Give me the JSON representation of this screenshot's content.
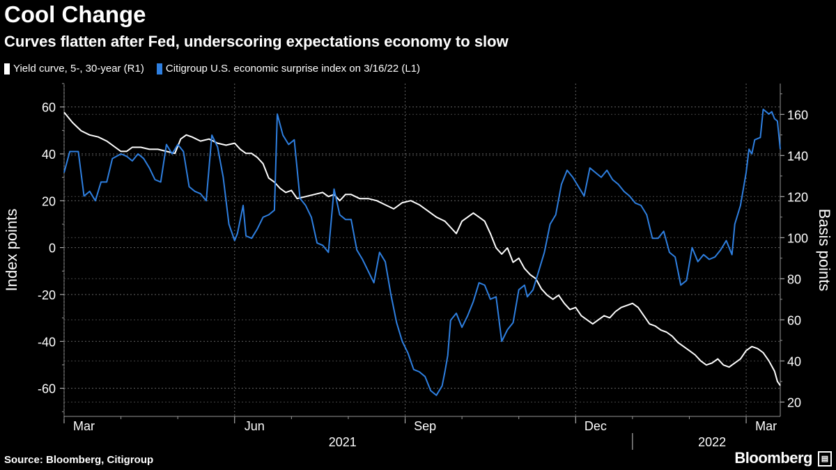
{
  "header": {
    "title": "Cool Change",
    "subtitle": "Curves flatten after Fed, underscoring expectations economy to slow"
  },
  "footer": {
    "source": "Source: Bloomberg, Citigroup",
    "brand": "Bloomberg",
    "brand_icon": "bar-chart-icon"
  },
  "colors": {
    "yield": "#ffffff",
    "citi": "#2e7fe0",
    "grid": "#666666",
    "background": "#000000"
  },
  "chart_data": {
    "type": "line",
    "title": "Cool Change",
    "subtitle": "Curves flatten after Fed, underscoring expectations economy to slow",
    "y_left": {
      "label": "Index points",
      "lim": [
        -72,
        70
      ],
      "ticks": [
        60,
        40,
        20,
        0,
        -20,
        -40,
        -60
      ]
    },
    "y_right": {
      "label": "Basis points",
      "lim": [
        13,
        175
      ],
      "ticks": [
        160,
        140,
        120,
        100,
        80,
        60,
        40,
        20
      ]
    },
    "x": {
      "lim": [
        0,
        12.6
      ],
      "month_ticks": [
        {
          "label": "Mar",
          "pos": 0.35
        },
        {
          "label": "Jun",
          "pos": 3.35
        },
        {
          "label": "Sep",
          "pos": 6.35
        },
        {
          "label": "Dec",
          "pos": 9.35
        },
        {
          "label": "Mar",
          "pos": 12.35
        }
      ],
      "year_labels": [
        {
          "label": "2021",
          "pos": 4.9
        },
        {
          "label": "2022",
          "pos": 11.4
        }
      ],
      "year_divider": 10.0
    },
    "series": [
      {
        "name": "Yield curve, 5-, 30-year (R1)",
        "legend": "Yield curve, 5-, 30-year (R1)",
        "axis": "right",
        "points": [
          [
            0.0,
            161
          ],
          [
            0.15,
            156
          ],
          [
            0.3,
            152
          ],
          [
            0.45,
            150
          ],
          [
            0.6,
            149
          ],
          [
            0.75,
            147
          ],
          [
            0.9,
            144
          ],
          [
            1.0,
            142
          ],
          [
            1.1,
            142
          ],
          [
            1.2,
            144
          ],
          [
            1.35,
            144
          ],
          [
            1.5,
            143
          ],
          [
            1.65,
            143
          ],
          [
            1.8,
            142
          ],
          [
            1.95,
            141
          ],
          [
            2.05,
            148
          ],
          [
            2.15,
            150
          ],
          [
            2.25,
            149
          ],
          [
            2.4,
            147
          ],
          [
            2.55,
            148
          ],
          [
            2.7,
            146
          ],
          [
            2.85,
            145
          ],
          [
            3.0,
            146
          ],
          [
            3.1,
            143
          ],
          [
            3.2,
            141
          ],
          [
            3.3,
            141
          ],
          [
            3.4,
            139
          ],
          [
            3.5,
            136
          ],
          [
            3.6,
            129
          ],
          [
            3.7,
            127
          ],
          [
            3.8,
            124
          ],
          [
            3.9,
            122
          ],
          [
            4.0,
            123
          ],
          [
            4.1,
            119
          ],
          [
            4.25,
            120
          ],
          [
            4.4,
            121
          ],
          [
            4.55,
            122
          ],
          [
            4.65,
            120
          ],
          [
            4.75,
            121
          ],
          [
            4.85,
            118
          ],
          [
            4.95,
            121
          ],
          [
            5.05,
            121
          ],
          [
            5.2,
            119
          ],
          [
            5.35,
            119
          ],
          [
            5.5,
            118
          ],
          [
            5.65,
            116
          ],
          [
            5.8,
            114
          ],
          [
            5.95,
            117
          ],
          [
            6.1,
            118
          ],
          [
            6.25,
            116
          ],
          [
            6.4,
            113
          ],
          [
            6.55,
            110
          ],
          [
            6.7,
            108
          ],
          [
            6.8,
            105
          ],
          [
            6.9,
            102
          ],
          [
            7.0,
            108
          ],
          [
            7.1,
            110
          ],
          [
            7.2,
            112
          ],
          [
            7.3,
            110
          ],
          [
            7.4,
            108
          ],
          [
            7.5,
            102
          ],
          [
            7.6,
            95
          ],
          [
            7.7,
            92
          ],
          [
            7.8,
            95
          ],
          [
            7.9,
            88
          ],
          [
            8.0,
            90
          ],
          [
            8.1,
            85
          ],
          [
            8.2,
            82
          ],
          [
            8.3,
            80
          ],
          [
            8.4,
            75
          ],
          [
            8.5,
            72
          ],
          [
            8.6,
            70
          ],
          [
            8.7,
            72
          ],
          [
            8.8,
            68
          ],
          [
            8.9,
            65
          ],
          [
            9.0,
            66
          ],
          [
            9.1,
            62
          ],
          [
            9.2,
            60
          ],
          [
            9.3,
            58
          ],
          [
            9.4,
            60
          ],
          [
            9.5,
            62
          ],
          [
            9.6,
            61
          ],
          [
            9.7,
            64
          ],
          [
            9.8,
            66
          ],
          [
            9.9,
            67
          ],
          [
            10.0,
            68
          ],
          [
            10.1,
            66
          ],
          [
            10.2,
            62
          ],
          [
            10.3,
            58
          ],
          [
            10.4,
            57
          ],
          [
            10.5,
            55
          ],
          [
            10.6,
            54
          ],
          [
            10.7,
            52
          ],
          [
            10.8,
            49
          ],
          [
            10.9,
            47
          ],
          [
            11.0,
            45
          ],
          [
            11.1,
            43
          ],
          [
            11.2,
            40
          ],
          [
            11.3,
            38
          ],
          [
            11.4,
            39
          ],
          [
            11.5,
            41
          ],
          [
            11.6,
            38
          ],
          [
            11.7,
            37
          ],
          [
            11.8,
            39
          ],
          [
            11.9,
            41
          ],
          [
            12.0,
            45
          ],
          [
            12.1,
            47
          ],
          [
            12.2,
            46
          ],
          [
            12.3,
            44
          ],
          [
            12.4,
            40
          ],
          [
            12.5,
            35
          ],
          [
            12.55,
            30
          ],
          [
            12.6,
            28
          ]
        ]
      },
      {
        "name": "Citigroup U.S. economic surprise index on 3/16/22 (L1)",
        "legend": "Citigroup U.S. economic surprise index on 3/16/22 (L1)",
        "axis": "left",
        "points": [
          [
            0.0,
            32
          ],
          [
            0.1,
            41
          ],
          [
            0.25,
            41
          ],
          [
            0.35,
            22
          ],
          [
            0.45,
            24
          ],
          [
            0.55,
            20
          ],
          [
            0.65,
            28
          ],
          [
            0.75,
            28
          ],
          [
            0.85,
            38
          ],
          [
            1.0,
            40
          ],
          [
            1.1,
            39
          ],
          [
            1.2,
            37
          ],
          [
            1.3,
            40
          ],
          [
            1.4,
            38
          ],
          [
            1.5,
            34
          ],
          [
            1.6,
            29
          ],
          [
            1.7,
            28
          ],
          [
            1.8,
            44
          ],
          [
            1.9,
            40
          ],
          [
            2.0,
            44
          ],
          [
            2.1,
            41
          ],
          [
            2.2,
            26
          ],
          [
            2.3,
            24
          ],
          [
            2.4,
            23
          ],
          [
            2.5,
            20
          ],
          [
            2.6,
            48
          ],
          [
            2.7,
            43
          ],
          [
            2.8,
            30
          ],
          [
            2.9,
            10
          ],
          [
            3.0,
            3
          ],
          [
            3.05,
            6
          ],
          [
            3.15,
            18
          ],
          [
            3.2,
            5
          ],
          [
            3.3,
            4
          ],
          [
            3.4,
            8
          ],
          [
            3.5,
            13
          ],
          [
            3.6,
            14
          ],
          [
            3.7,
            16
          ],
          [
            3.75,
            57
          ],
          [
            3.85,
            48
          ],
          [
            3.95,
            44
          ],
          [
            4.05,
            46
          ],
          [
            4.15,
            21
          ],
          [
            4.25,
            18
          ],
          [
            4.35,
            13
          ],
          [
            4.45,
            2
          ],
          [
            4.55,
            1
          ],
          [
            4.65,
            -2
          ],
          [
            4.75,
            25
          ],
          [
            4.85,
            14
          ],
          [
            4.95,
            12
          ],
          [
            5.05,
            12
          ],
          [
            5.15,
            -1
          ],
          [
            5.25,
            -5
          ],
          [
            5.35,
            -10
          ],
          [
            5.45,
            -15
          ],
          [
            5.55,
            -2
          ],
          [
            5.65,
            -6
          ],
          [
            5.75,
            -20
          ],
          [
            5.85,
            -32
          ],
          [
            5.95,
            -40
          ],
          [
            6.05,
            -45
          ],
          [
            6.15,
            -52
          ],
          [
            6.25,
            -53
          ],
          [
            6.35,
            -55
          ],
          [
            6.45,
            -61
          ],
          [
            6.55,
            -63
          ],
          [
            6.65,
            -59
          ],
          [
            6.7,
            -53
          ],
          [
            6.75,
            -46
          ],
          [
            6.8,
            -31
          ],
          [
            6.9,
            -28
          ],
          [
            7.0,
            -34
          ],
          [
            7.1,
            -29
          ],
          [
            7.2,
            -23
          ],
          [
            7.3,
            -15
          ],
          [
            7.4,
            -16
          ],
          [
            7.5,
            -22
          ],
          [
            7.6,
            -21
          ],
          [
            7.7,
            -40
          ],
          [
            7.8,
            -35
          ],
          [
            7.9,
            -32
          ],
          [
            8.0,
            -18
          ],
          [
            8.1,
            -16
          ],
          [
            8.15,
            -21
          ],
          [
            8.25,
            -18
          ],
          [
            8.35,
            -10
          ],
          [
            8.45,
            -2
          ],
          [
            8.55,
            10
          ],
          [
            8.65,
            14
          ],
          [
            8.75,
            27
          ],
          [
            8.85,
            33
          ],
          [
            8.95,
            30
          ],
          [
            9.05,
            26
          ],
          [
            9.15,
            22
          ],
          [
            9.25,
            34
          ],
          [
            9.35,
            32
          ],
          [
            9.45,
            30
          ],
          [
            9.55,
            33
          ],
          [
            9.65,
            29
          ],
          [
            9.75,
            27
          ],
          [
            9.85,
            24
          ],
          [
            9.95,
            22
          ],
          [
            10.05,
            19
          ],
          [
            10.15,
            18
          ],
          [
            10.25,
            14
          ],
          [
            10.35,
            4
          ],
          [
            10.45,
            4
          ],
          [
            10.55,
            7
          ],
          [
            10.65,
            -2
          ],
          [
            10.75,
            -4
          ],
          [
            10.85,
            -16
          ],
          [
            10.95,
            -14
          ],
          [
            11.05,
            0
          ],
          [
            11.15,
            -6
          ],
          [
            11.25,
            -3
          ],
          [
            11.35,
            -5
          ],
          [
            11.45,
            -4
          ],
          [
            11.55,
            -1
          ],
          [
            11.65,
            3
          ],
          [
            11.75,
            -3
          ],
          [
            11.8,
            10
          ],
          [
            11.9,
            18
          ],
          [
            12.0,
            32
          ],
          [
            12.05,
            42
          ],
          [
            12.1,
            40
          ],
          [
            12.15,
            46
          ],
          [
            12.25,
            47
          ],
          [
            12.3,
            59
          ],
          [
            12.4,
            57
          ],
          [
            12.45,
            58
          ],
          [
            12.5,
            55
          ],
          [
            12.55,
            54
          ],
          [
            12.6,
            42
          ]
        ]
      }
    ]
  }
}
